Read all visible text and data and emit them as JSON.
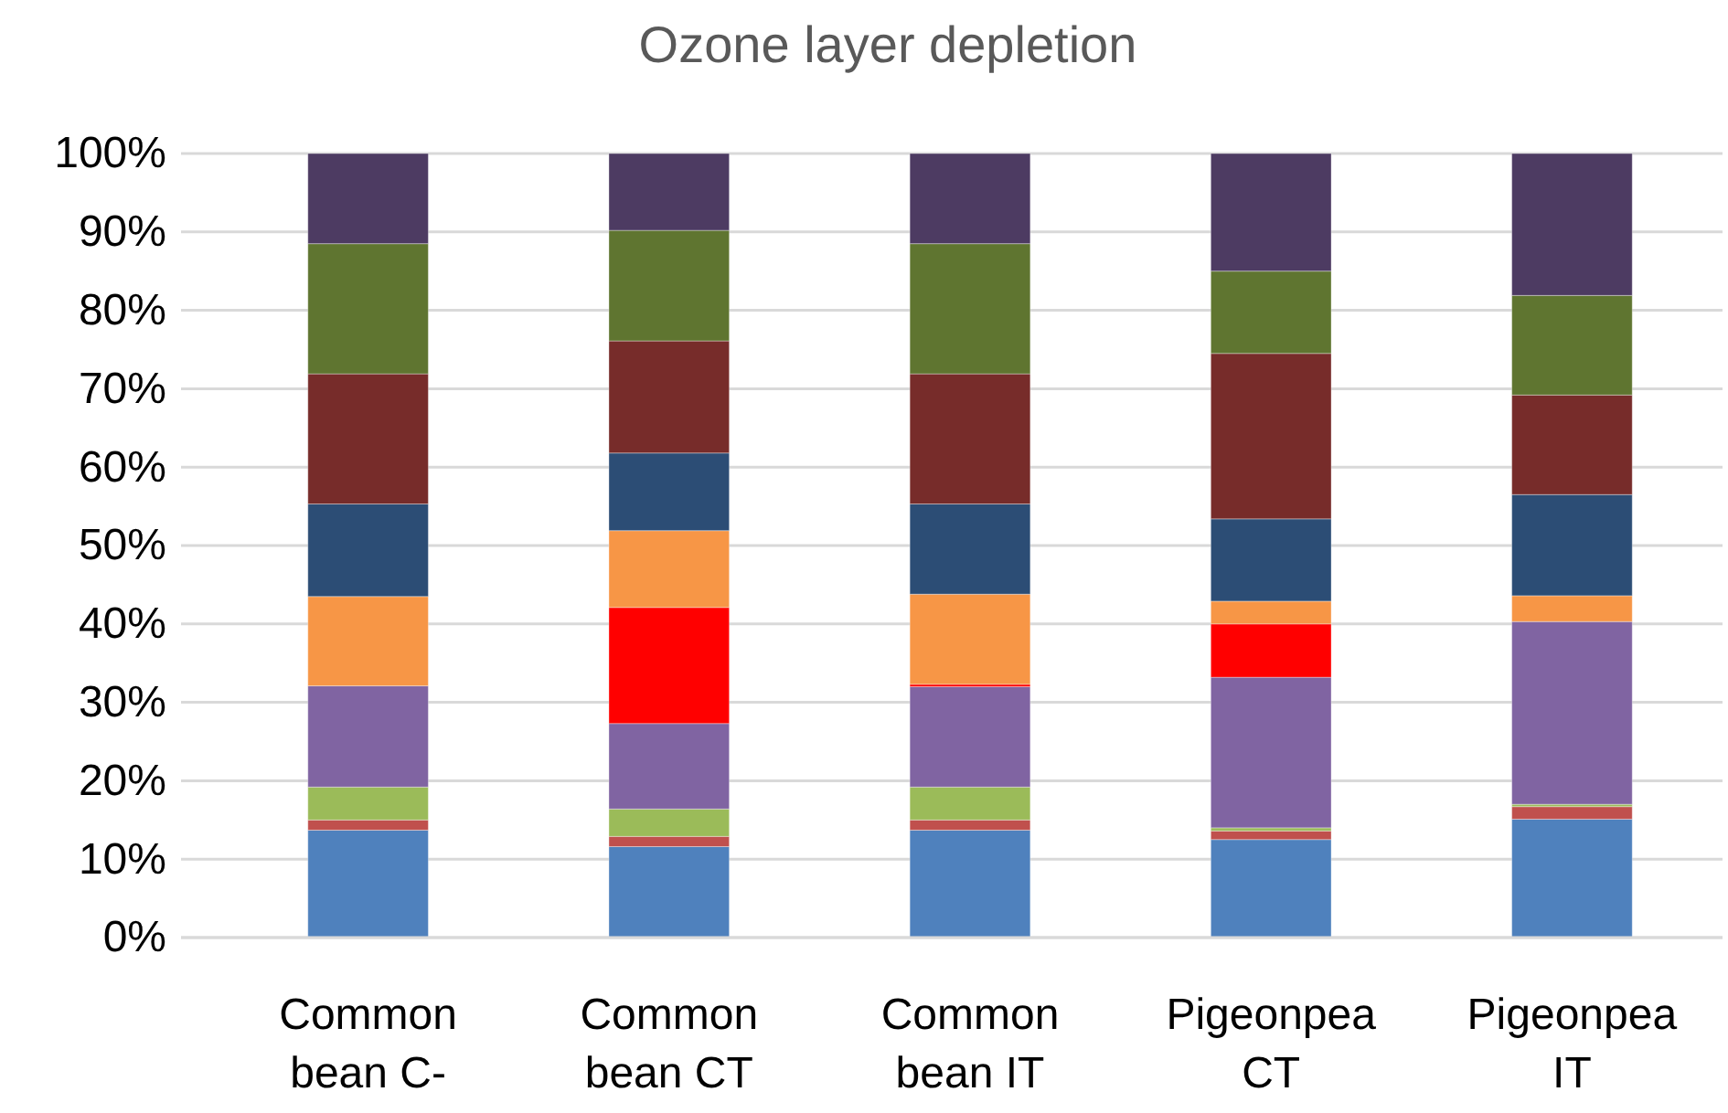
{
  "chart_data": {
    "type": "bar",
    "stacked": true,
    "title": "Ozone layer depletion",
    "categories": [
      "Common bean C-",
      "Common bean CT",
      "Common bean IT",
      "Pigeonpea CT",
      "Pigeonpea IT"
    ],
    "series": [
      {
        "color": "#4f81bd",
        "values": [
          13.7,
          11.6,
          13.7,
          12.5,
          15.1
        ]
      },
      {
        "color": "#c0504d",
        "values": [
          1.3,
          1.3,
          1.3,
          1.1,
          1.6
        ]
      },
      {
        "color": "#9bbb59",
        "values": [
          4.2,
          3.5,
          4.2,
          0.4,
          0.3
        ]
      },
      {
        "color": "#8064a2",
        "values": [
          12.9,
          10.9,
          12.8,
          19.2,
          23.3
        ]
      },
      {
        "color": "#ff0000",
        "values": [
          0,
          14.8,
          0.3,
          6.8,
          0
        ]
      },
      {
        "color": "#f79646",
        "values": [
          11.4,
          9.8,
          11.5,
          2.9,
          3.3
        ]
      },
      {
        "color": "#2c4d75",
        "values": [
          11.8,
          9.9,
          11.5,
          10.5,
          12.9
        ]
      },
      {
        "color": "#772c2a",
        "values": [
          16.6,
          14.3,
          16.6,
          21.1,
          12.7
        ]
      },
      {
        "color": "#5f7530",
        "values": [
          16.6,
          14.1,
          16.6,
          10.5,
          12.7
        ]
      },
      {
        "color": "#4d3b62",
        "values": [
          11.5,
          9.8,
          11.5,
          15.0,
          18.1
        ]
      }
    ],
    "ylim": [
      0,
      100
    ],
    "yticks": [
      {
        "value": 0,
        "label": "0%"
      },
      {
        "value": 10,
        "label": "10%"
      },
      {
        "value": 20,
        "label": "20%"
      },
      {
        "value": 30,
        "label": "30%"
      },
      {
        "value": 40,
        "label": "40%"
      },
      {
        "value": 50,
        "label": "50%"
      },
      {
        "value": 60,
        "label": "60%"
      },
      {
        "value": 70,
        "label": "70%"
      },
      {
        "value": 80,
        "label": "80%"
      },
      {
        "value": 90,
        "label": "90%"
      },
      {
        "value": 100,
        "label": "100%"
      }
    ],
    "grid": "y"
  }
}
